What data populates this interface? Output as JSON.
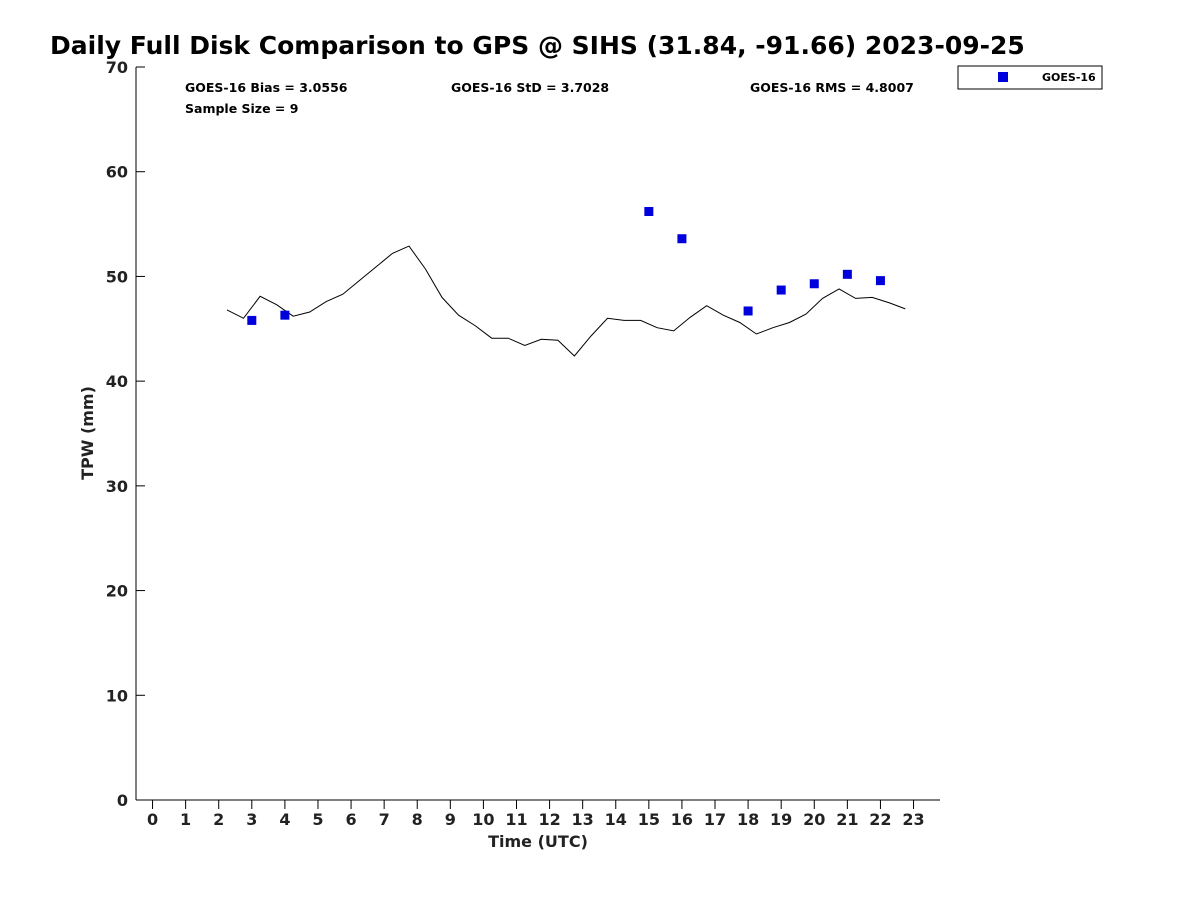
{
  "chart_data": {
    "type": "scatter",
    "title": "Daily Full Disk Comparison to GPS @ SIHS (31.84, -91.66) 2023-09-25",
    "xlabel": "Time (UTC)",
    "ylabel": "TPW (mm)",
    "xlim": [
      -0.5,
      23.8
    ],
    "ylim": [
      0,
      70
    ],
    "x_ticks": [
      0,
      1,
      2,
      3,
      4,
      5,
      6,
      7,
      8,
      9,
      10,
      11,
      12,
      13,
      14,
      15,
      16,
      17,
      18,
      19,
      20,
      21,
      22,
      23
    ],
    "y_ticks": [
      0,
      10,
      20,
      30,
      40,
      50,
      60,
      70
    ],
    "grid": false,
    "legend_position": "top-right",
    "stats": {
      "bias": "GOES-16 Bias = 3.0556",
      "std": "GOES-16 StD = 3.7028",
      "rms": "GOES-16 RMS = 4.8007",
      "sample": "Sample Size = 9"
    },
    "series": [
      {
        "name": "GOES-16",
        "kind": "scatter",
        "marker": "square",
        "color": "#0000dd",
        "x": [
          3,
          4,
          15,
          16,
          18,
          19,
          20,
          21,
          22
        ],
        "y": [
          45.8,
          46.3,
          56.2,
          53.6,
          46.7,
          48.7,
          49.3,
          50.2,
          49.6
        ]
      },
      {
        "kind": "line",
        "color": "#000000",
        "x": [
          2.25,
          2.75,
          3.25,
          3.75,
          4.25,
          4.75,
          5.25,
          5.75,
          6.25,
          6.75,
          7.25,
          7.75,
          8.25,
          8.75,
          9.25,
          9.75,
          10.25,
          10.75,
          11.25,
          11.75,
          12.25,
          12.75,
          13.25,
          13.75,
          14.25,
          14.75,
          15.25,
          15.75,
          16.25,
          16.75,
          17.25,
          17.75,
          18.25,
          18.75,
          19.25,
          19.75,
          20.25,
          20.75,
          21.25,
          21.75,
          22.25,
          22.75
        ],
        "y": [
          46.8,
          46.0,
          48.1,
          47.3,
          46.2,
          46.6,
          47.6,
          48.3,
          49.6,
          50.9,
          52.2,
          52.9,
          50.7,
          48.0,
          46.3,
          45.3,
          44.1,
          44.1,
          43.4,
          44.0,
          43.9,
          42.4,
          44.3,
          46.0,
          45.8,
          45.8,
          45.1,
          44.8,
          46.1,
          47.2,
          46.3,
          45.6,
          44.5,
          45.1,
          45.6,
          46.4,
          47.9,
          48.8,
          47.9,
          48.0,
          47.5,
          46.9
        ]
      }
    ]
  }
}
